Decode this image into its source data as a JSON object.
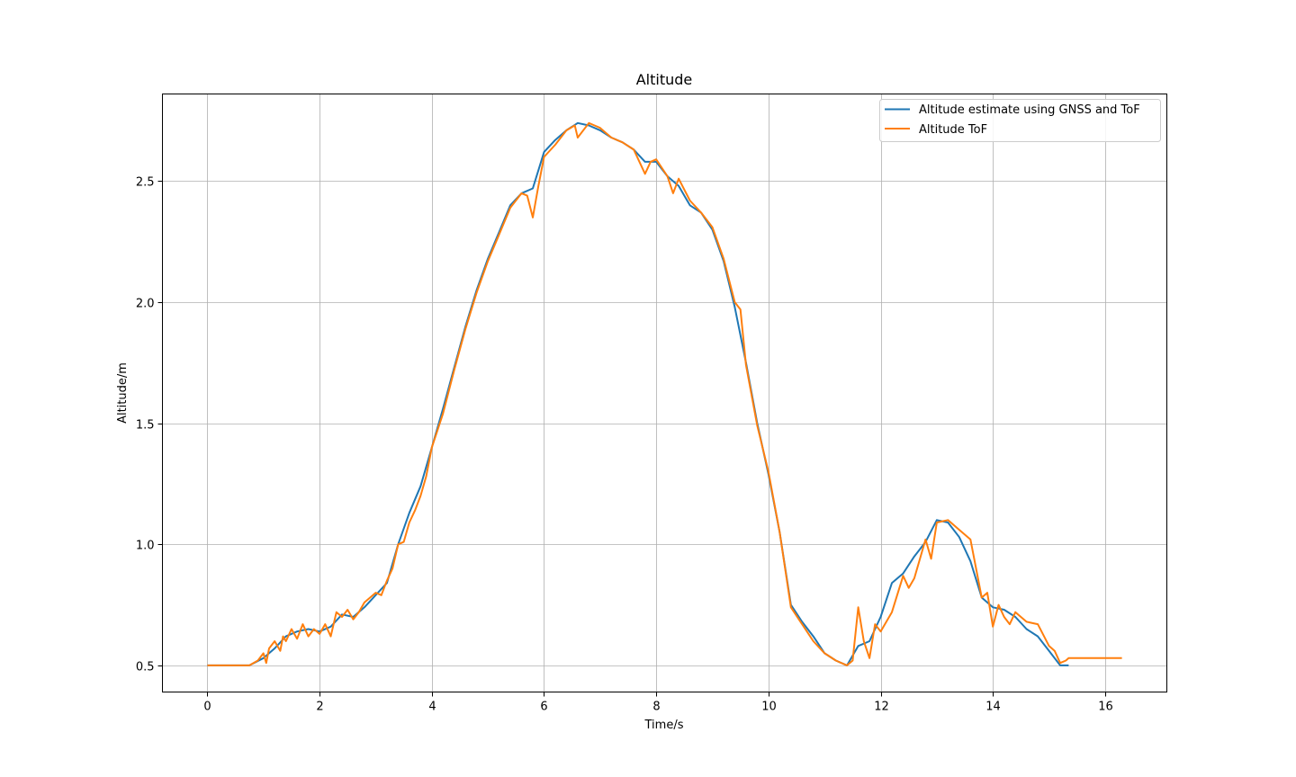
{
  "chart_data": {
    "type": "line",
    "title": "Altitude",
    "xlabel": "Time/s",
    "ylabel": "Altitude/m",
    "xlim": [
      -0.8,
      17.1
    ],
    "ylim": [
      0.39,
      2.86
    ],
    "xticks": [
      0,
      2,
      4,
      6,
      8,
      10,
      12,
      14,
      16
    ],
    "yticks": [
      0.5,
      1.0,
      1.5,
      2.0,
      2.5
    ],
    "xtick_labels": [
      "0",
      "2",
      "4",
      "6",
      "8",
      "10",
      "12",
      "14",
      "16"
    ],
    "ytick_labels": [
      "0.5",
      "1.0",
      "1.5",
      "2.0",
      "2.5"
    ],
    "grid": true,
    "legend_position": "top-right",
    "series": [
      {
        "name": "Altitude estimate using GNSS and ToF",
        "color": "#1f77b4",
        "x": [
          0,
          0.5,
          0.75,
          1.0,
          1.2,
          1.4,
          1.6,
          1.8,
          2.0,
          2.2,
          2.4,
          2.6,
          2.8,
          3.0,
          3.2,
          3.4,
          3.6,
          3.8,
          4.0,
          4.2,
          4.4,
          4.6,
          4.8,
          5.0,
          5.2,
          5.4,
          5.6,
          5.8,
          6.0,
          6.2,
          6.4,
          6.6,
          6.8,
          7.0,
          7.2,
          7.4,
          7.6,
          7.8,
          8.0,
          8.2,
          8.4,
          8.6,
          8.8,
          9.0,
          9.2,
          9.4,
          9.6,
          9.8,
          10.0,
          10.2,
          10.4,
          10.6,
          10.8,
          11.0,
          11.2,
          11.4,
          11.6,
          11.8,
          12.0,
          12.2,
          12.4,
          12.6,
          12.8,
          13.0,
          13.2,
          13.4,
          13.6,
          13.8,
          14.0,
          14.2,
          14.4,
          14.6,
          14.8,
          15.0,
          15.2,
          15.35
        ],
        "y": [
          0.5,
          0.5,
          0.5,
          0.53,
          0.57,
          0.62,
          0.64,
          0.65,
          0.64,
          0.66,
          0.71,
          0.7,
          0.74,
          0.79,
          0.84,
          1.0,
          1.13,
          1.24,
          1.4,
          1.56,
          1.73,
          1.9,
          2.05,
          2.18,
          2.29,
          2.4,
          2.45,
          2.47,
          2.62,
          2.67,
          2.71,
          2.74,
          2.73,
          2.71,
          2.68,
          2.66,
          2.63,
          2.58,
          2.58,
          2.52,
          2.48,
          2.4,
          2.37,
          2.3,
          2.17,
          1.98,
          1.75,
          1.5,
          1.29,
          1.05,
          0.75,
          0.68,
          0.62,
          0.55,
          0.52,
          0.5,
          0.58,
          0.6,
          0.7,
          0.84,
          0.88,
          0.95,
          1.01,
          1.1,
          1.09,
          1.03,
          0.93,
          0.78,
          0.74,
          0.73,
          0.7,
          0.65,
          0.62,
          0.56,
          0.5,
          0.5
        ]
      },
      {
        "name": "Altitude ToF",
        "color": "#ff7f0e",
        "x": [
          0,
          0.5,
          0.75,
          0.9,
          1.0,
          1.05,
          1.1,
          1.2,
          1.3,
          1.35,
          1.4,
          1.5,
          1.6,
          1.7,
          1.8,
          1.9,
          2.0,
          2.1,
          2.2,
          2.3,
          2.4,
          2.5,
          2.6,
          2.7,
          2.8,
          2.9,
          3.0,
          3.1,
          3.2,
          3.3,
          3.4,
          3.5,
          3.6,
          3.7,
          3.8,
          3.9,
          4.0,
          4.2,
          4.4,
          4.6,
          4.8,
          5.0,
          5.2,
          5.4,
          5.6,
          5.7,
          5.8,
          5.9,
          6.0,
          6.2,
          6.4,
          6.55,
          6.6,
          6.8,
          6.9,
          7.0,
          7.1,
          7.2,
          7.4,
          7.6,
          7.8,
          7.9,
          8.0,
          8.2,
          8.3,
          8.4,
          8.6,
          8.8,
          9.0,
          9.2,
          9.4,
          9.5,
          9.6,
          9.8,
          10.0,
          10.2,
          10.4,
          10.6,
          10.8,
          11.0,
          11.2,
          11.4,
          11.5,
          11.6,
          11.7,
          11.8,
          11.9,
          12.0,
          12.2,
          12.4,
          12.5,
          12.6,
          12.8,
          12.9,
          13.0,
          13.2,
          13.4,
          13.6,
          13.8,
          13.9,
          14.0,
          14.1,
          14.2,
          14.3,
          14.4,
          14.6,
          14.8,
          15.0,
          15.1,
          15.2,
          15.3,
          15.35,
          16.3
        ],
        "y": [
          0.5,
          0.5,
          0.5,
          0.52,
          0.55,
          0.51,
          0.57,
          0.6,
          0.56,
          0.62,
          0.6,
          0.65,
          0.61,
          0.67,
          0.62,
          0.65,
          0.63,
          0.67,
          0.62,
          0.72,
          0.7,
          0.73,
          0.69,
          0.72,
          0.76,
          0.78,
          0.8,
          0.79,
          0.85,
          0.9,
          1.0,
          1.01,
          1.09,
          1.14,
          1.2,
          1.28,
          1.4,
          1.54,
          1.72,
          1.89,
          2.04,
          2.17,
          2.28,
          2.39,
          2.45,
          2.44,
          2.35,
          2.48,
          2.6,
          2.65,
          2.71,
          2.73,
          2.68,
          2.74,
          2.73,
          2.72,
          2.7,
          2.68,
          2.66,
          2.63,
          2.53,
          2.58,
          2.59,
          2.52,
          2.45,
          2.51,
          2.42,
          2.37,
          2.31,
          2.18,
          2.0,
          1.97,
          1.74,
          1.49,
          1.3,
          1.05,
          0.74,
          0.67,
          0.6,
          0.55,
          0.52,
          0.5,
          0.52,
          0.74,
          0.6,
          0.53,
          0.67,
          0.64,
          0.72,
          0.87,
          0.82,
          0.86,
          1.02,
          0.94,
          1.09,
          1.1,
          1.06,
          1.02,
          0.78,
          0.8,
          0.66,
          0.75,
          0.7,
          0.67,
          0.72,
          0.68,
          0.67,
          0.58,
          0.56,
          0.51,
          0.52,
          0.53,
          0.53
        ]
      }
    ]
  }
}
